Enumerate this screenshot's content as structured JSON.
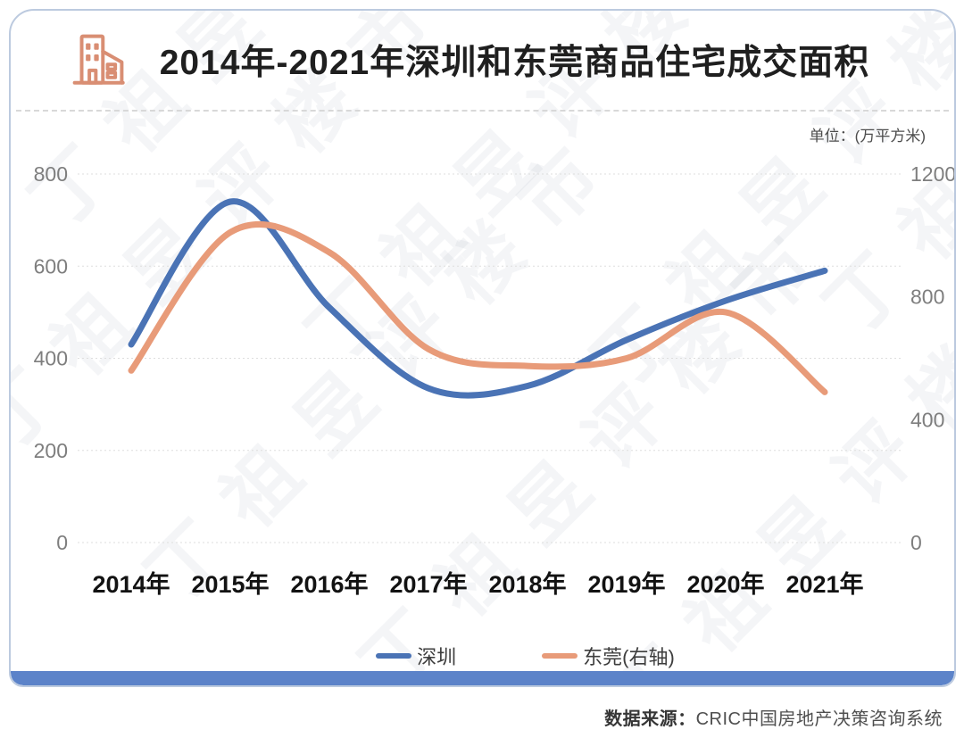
{
  "header": {
    "title_regular": "2014年-2021年深圳和东莞商品",
    "title_bold": "住宅成交面积"
  },
  "chart_data": {
    "type": "line",
    "title": "2014年-2021年深圳和东莞商品住宅成交面积",
    "unit_label": "单位：(万平方米)",
    "categories": [
      "2014年",
      "2015年",
      "2016年",
      "2017年",
      "2018年",
      "2019年",
      "2020年",
      "2021年"
    ],
    "series": [
      {
        "name": "深圳",
        "axis": "left",
        "color": "#4a73b5",
        "values": [
          430,
          740,
          510,
          335,
          340,
          440,
          525,
          590
        ]
      },
      {
        "name": "东莞(右轴)",
        "axis": "right",
        "color": "#e89b79",
        "values": [
          560,
          1010,
          945,
          630,
          575,
          600,
          750,
          490
        ]
      }
    ],
    "y_axis_left": {
      "min": 0,
      "max": 800,
      "ticks": [
        800,
        600,
        400,
        200,
        0
      ]
    },
    "y_axis_right": {
      "min": 0,
      "max": 1200,
      "ticks": [
        1200,
        800,
        400,
        0
      ]
    },
    "grid": true,
    "smooth": true,
    "legend_position": "bottom"
  },
  "legend": [
    {
      "label": "深圳",
      "color": "#4a73b5"
    },
    {
      "label": "东莞(右轴)",
      "color": "#e89b79"
    }
  ],
  "watermark": {
    "text": "丁祖昱评楼市"
  },
  "footer": {
    "source_label": "数据来源：",
    "source_value": "CRIC中国房地产决策咨询系统"
  },
  "colors": {
    "shenzhen_line": "#4a73b5",
    "dongguan_line": "#e89b79",
    "bottom_bar": "#5c83c9",
    "card_border": "#bccadf",
    "icon": "#d98e73"
  }
}
